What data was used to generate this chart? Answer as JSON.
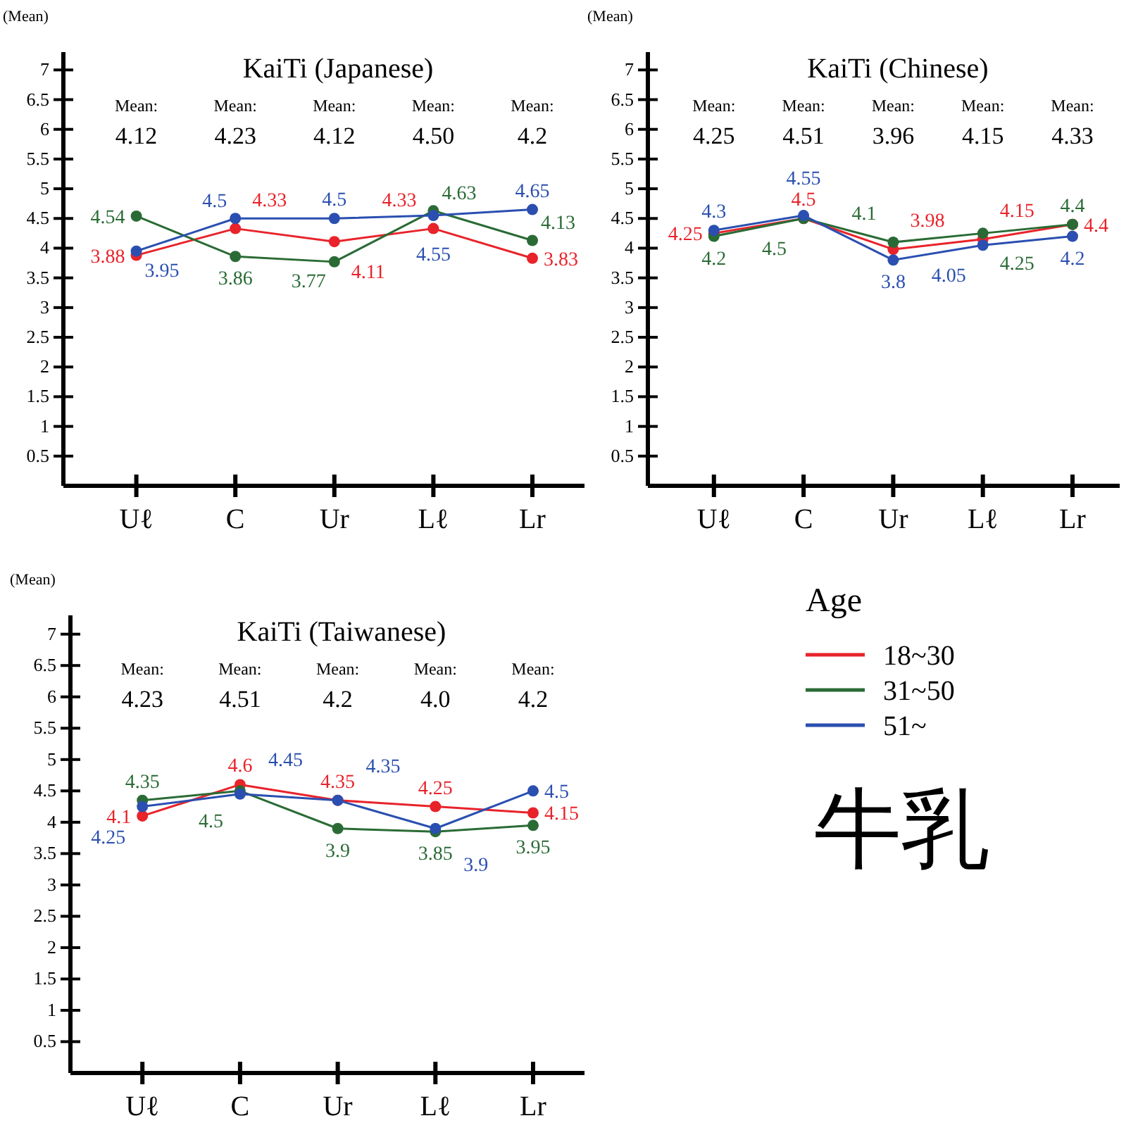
{
  "chart_data": [
    {
      "type": "line",
      "title": "KaiTi (Japanese)",
      "ylabel": "(Mean)",
      "categories": [
        "Uℓ",
        "C",
        "Ur",
        "Lℓ",
        "Lr"
      ],
      "ylim": [
        0,
        7.3
      ],
      "yticks": [
        0.5,
        1,
        1.5,
        2,
        2.5,
        3,
        3.5,
        4,
        4.5,
        5,
        5.5,
        6,
        6.5,
        7
      ],
      "grid": false,
      "marker": "circle",
      "line_style": "solid",
      "data_labels": true,
      "annotations": [
        "Mean:\n4.12",
        "Mean:\n4.23",
        "Mean:\n4.12",
        "Mean:\n4.50",
        "Mean:\n4.2"
      ],
      "series": [
        {
          "color": "#e8232a",
          "values": [
            3.88,
            4.33,
            4.11,
            4.33,
            3.83
          ]
        },
        {
          "color": "#2a6b35",
          "values": [
            4.54,
            3.86,
            3.77,
            4.63,
            4.13
          ]
        },
        {
          "color": "#2a4fb0",
          "values": [
            3.95,
            4.5,
            4.5,
            4.55,
            4.65
          ]
        }
      ]
    },
    {
      "type": "line",
      "title": "KaiTi  (Chinese)",
      "ylabel": "(Mean)",
      "categories": [
        "Uℓ",
        "C",
        "Ur",
        "Lℓ",
        "Lr"
      ],
      "ylim": [
        0,
        7.3
      ],
      "yticks": [
        0.5,
        1,
        1.5,
        2,
        2.5,
        3,
        3.5,
        4,
        4.5,
        5,
        5.5,
        6,
        6.5,
        7
      ],
      "grid": false,
      "marker": "circle",
      "line_style": "solid",
      "data_labels": true,
      "annotations": [
        "Mean:\n4.25",
        "Mean:\n4.51",
        "Mean:\n3.96",
        "Mean:\n4.15",
        "Mean:\n4.33"
      ],
      "series": [
        {
          "color": "#e8232a",
          "values": [
            4.25,
            4.5,
            3.98,
            4.15,
            4.4
          ]
        },
        {
          "color": "#2a6b35",
          "values": [
            4.2,
            4.5,
            4.1,
            4.25,
            4.4
          ]
        },
        {
          "color": "#2a4fb0",
          "values": [
            4.3,
            4.55,
            3.8,
            4.05,
            4.2
          ]
        }
      ]
    },
    {
      "type": "line",
      "title": "KaiTi (Taiwanese)",
      "ylabel": "(Mean)",
      "categories": [
        "Uℓ",
        "C",
        "Ur",
        "Lℓ",
        "Lr"
      ],
      "ylim": [
        0,
        7.3
      ],
      "yticks": [
        0.5,
        1,
        1.5,
        2,
        2.5,
        3,
        3.5,
        4,
        4.5,
        5,
        5.5,
        6,
        6.5,
        7
      ],
      "grid": false,
      "marker": "circle",
      "line_style": "solid",
      "data_labels": true,
      "legend": "right",
      "legend_title": "Age",
      "annotations": [
        "Mean:\n4.23",
        "Mean:\n4.51",
        "Mean:\n4.2",
        "Mean:\n4.0",
        "Mean:\n4.2"
      ],
      "series": [
        {
          "name": "18~30",
          "color": "#e8232a",
          "values": [
            4.1,
            4.6,
            4.35,
            4.25,
            4.15
          ]
        },
        {
          "name": "31~50",
          "color": "#2a6b35",
          "values": [
            4.35,
            4.5,
            3.9,
            3.85,
            3.95
          ]
        },
        {
          "name": "51~",
          "color": "#2a4fb0",
          "values": [
            4.25,
            4.45,
            4.35,
            3.9,
            4.5
          ]
        }
      ]
    },
    {
      "type": "other",
      "title": "牛乳"
    }
  ]
}
